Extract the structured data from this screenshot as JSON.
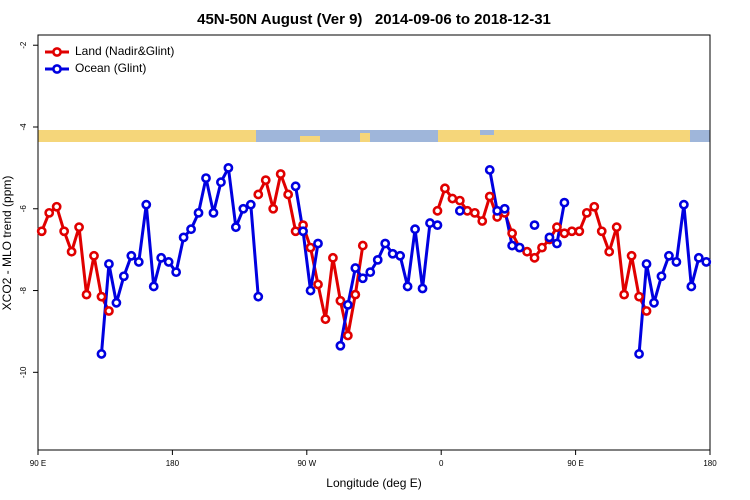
{
  "chart_data": {
    "type": "line",
    "title": "45N-50N August (Ver 9)   2014-09-06 to 2018-12-31",
    "xlabel": "Longitude (deg E)",
    "ylabel": "XCO2 - MLO trend (ppm)",
    "x": [
      92.5,
      97.5,
      102.5,
      107.5,
      112.5,
      117.5,
      122.5,
      127.5,
      132.5,
      137.5,
      142.5,
      147.5,
      152.5,
      157.5,
      162.5,
      167.5,
      172.5,
      177.5,
      182.5,
      187.5,
      192.5,
      197.5,
      202.5,
      207.5,
      212.5,
      217.5,
      222.5,
      227.5,
      232.5,
      237.5,
      242.5,
      247.5,
      252.5,
      257.5,
      262.5,
      267.5,
      272.5,
      277.5,
      282.5,
      287.5,
      292.5,
      297.5,
      302.5,
      307.5,
      312.5,
      317.5,
      322.5,
      327.5,
      332.5,
      337.5,
      342.5,
      347.5,
      352.5,
      357.5,
      362.5,
      367.5,
      372.5,
      377.5,
      382.5,
      387.5,
      392.5,
      397.5,
      402.5,
      407.5,
      412.5,
      417.5,
      422.5,
      427.5,
      432.5,
      437.5,
      442.5,
      447.5,
      452.5,
      457.5,
      462.5,
      467.5,
      472.5,
      477.5,
      482.5,
      487.5,
      492.5,
      497.5,
      502.5,
      507.5,
      512.5,
      517.5,
      522.5,
      527.5,
      532.5,
      537.5
    ],
    "series": [
      {
        "name": "Land (Nadir&Glint)",
        "color": "#e00000",
        "values": [
          -6.55,
          -6.1,
          -5.95,
          -6.55,
          -7.05,
          -6.45,
          -8.1,
          -7.15,
          -8.15,
          -8.5,
          null,
          null,
          null,
          null,
          null,
          null,
          null,
          null,
          null,
          null,
          null,
          null,
          null,
          null,
          null,
          null,
          null,
          null,
          null,
          -5.65,
          -5.3,
          -6.0,
          -5.15,
          -5.65,
          -6.55,
          -6.4,
          -6.95,
          -7.85,
          -8.7,
          -7.2,
          -8.25,
          -9.1,
          -8.1,
          -6.9,
          null,
          null,
          null,
          null,
          null,
          null,
          null,
          null,
          null,
          -6.05,
          -5.5,
          -5.75,
          -5.8,
          -6.05,
          -6.1,
          -6.3,
          -5.7,
          -6.2,
          -6.1,
          -6.6,
          -6.95,
          -7.05,
          -7.2,
          -6.95,
          -6.75,
          -6.45,
          -6.6,
          -6.55,
          -6.55,
          -6.1,
          -5.95,
          -6.55,
          -7.05,
          -6.45,
          -8.1,
          -7.15,
          -8.15,
          -8.5,
          null,
          null,
          null,
          null,
          null,
          null,
          null,
          null
        ]
      },
      {
        "name": "Ocean (Glint)",
        "color": "#0000e0",
        "values": [
          null,
          null,
          null,
          null,
          null,
          null,
          null,
          null,
          -9.55,
          -7.35,
          -8.3,
          -7.65,
          -7.15,
          -7.3,
          -5.9,
          -7.9,
          -7.2,
          -7.3,
          -7.55,
          -6.7,
          -6.5,
          -6.1,
          -5.25,
          -6.1,
          -5.35,
          -5.0,
          -6.45,
          -6.0,
          -5.9,
          -8.15,
          null,
          null,
          null,
          null,
          -5.45,
          -6.55,
          -8.0,
          -6.85,
          null,
          null,
          -9.35,
          -8.35,
          -7.45,
          -7.7,
          -7.55,
          -7.25,
          -6.85,
          -7.1,
          -7.15,
          -7.9,
          -6.5,
          -7.95,
          -6.35,
          -6.4,
          null,
          null,
          -6.05,
          null,
          null,
          null,
          -5.05,
          -6.05,
          -6.0,
          -6.9,
          -6.95,
          null,
          -6.4,
          null,
          -6.7,
          -6.85,
          -5.85,
          null,
          null,
          null,
          null,
          null,
          null,
          null,
          null,
          null,
          -9.55,
          -7.35,
          -8.3,
          -7.65,
          -7.15,
          -7.3,
          -5.9,
          -7.9,
          -7.2,
          -7.3
        ]
      }
    ],
    "xlim": [
      90,
      540
    ],
    "xticks": [
      {
        "value": 90,
        "label": "90 E"
      },
      {
        "value": 180,
        "label": "180"
      },
      {
        "value": 270,
        "label": "90 W"
      },
      {
        "value": 360,
        "label": "0"
      },
      {
        "value": 450,
        "label": "90 E"
      },
      {
        "value": 540,
        "label": "180"
      }
    ],
    "ylim": [
      -11.9,
      -1.75
    ],
    "yticks": [
      -10,
      -8,
      -6,
      -4,
      -2
    ],
    "legend": "upper left"
  }
}
